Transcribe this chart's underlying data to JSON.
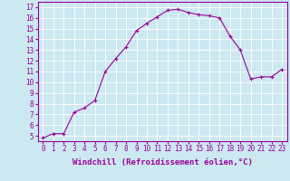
{
  "x": [
    0,
    1,
    2,
    3,
    4,
    5,
    6,
    7,
    8,
    9,
    10,
    11,
    12,
    13,
    14,
    15,
    16,
    17,
    18,
    19,
    20,
    21,
    22,
    23
  ],
  "y": [
    4.8,
    5.2,
    5.2,
    7.2,
    7.6,
    8.3,
    11.0,
    12.2,
    13.3,
    14.8,
    15.5,
    16.1,
    16.7,
    16.8,
    16.5,
    16.3,
    16.2,
    16.0,
    14.3,
    13.0,
    10.3,
    10.5,
    10.5,
    11.2
  ],
  "xlim": [
    -0.5,
    23.5
  ],
  "ylim": [
    4.5,
    17.5
  ],
  "yticks": [
    5,
    6,
    7,
    8,
    9,
    10,
    11,
    12,
    13,
    14,
    15,
    16,
    17
  ],
  "xticks": [
    0,
    1,
    2,
    3,
    4,
    5,
    6,
    7,
    8,
    9,
    10,
    11,
    12,
    13,
    14,
    15,
    16,
    17,
    18,
    19,
    20,
    21,
    22,
    23
  ],
  "xlabel": "Windchill (Refroidissement éolien,°C)",
  "line_color": "#990099",
  "marker": "+",
  "background_color": "#cce8f0",
  "grid_color": "#aaddcc",
  "text_color": "#990099",
  "tick_fontsize": 5.5,
  "xlabel_fontsize": 6.5
}
